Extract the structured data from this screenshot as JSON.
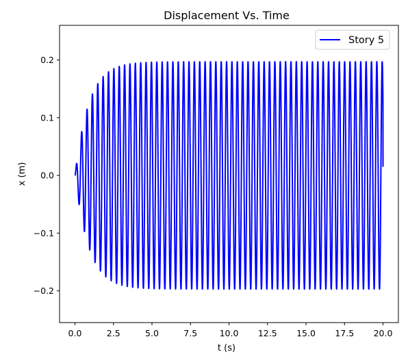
{
  "chart_data": {
    "type": "line",
    "title": "Displacement Vs. Time",
    "xlabel": "t (s)",
    "ylabel": "x (m)",
    "xlim": [
      -1.0,
      21.0
    ],
    "ylim": [
      -0.255,
      0.26
    ],
    "xticks": [
      0.0,
      2.5,
      5.0,
      7.5,
      10.0,
      12.5,
      15.0,
      17.5,
      20.0
    ],
    "xtick_labels": [
      "0.0",
      "2.5",
      "5.0",
      "7.5",
      "10.0",
      "12.5",
      "15.0",
      "17.5",
      "20.0"
    ],
    "yticks": [
      -0.2,
      -0.1,
      0.0,
      0.1,
      0.2
    ],
    "ytick_labels": [
      "−0.2",
      "−0.1",
      "0.0",
      "0.1",
      "0.2"
    ],
    "grid": false,
    "legend_position": "top-right",
    "series": [
      {
        "name": "Story 5",
        "color": "#0000ff",
        "t_range": [
          0,
          20
        ],
        "amplitude": 0.197,
        "frequency_hz": 2.87,
        "envelope_time_constant_s": 0.9,
        "end_value": 0.015
      }
    ]
  }
}
